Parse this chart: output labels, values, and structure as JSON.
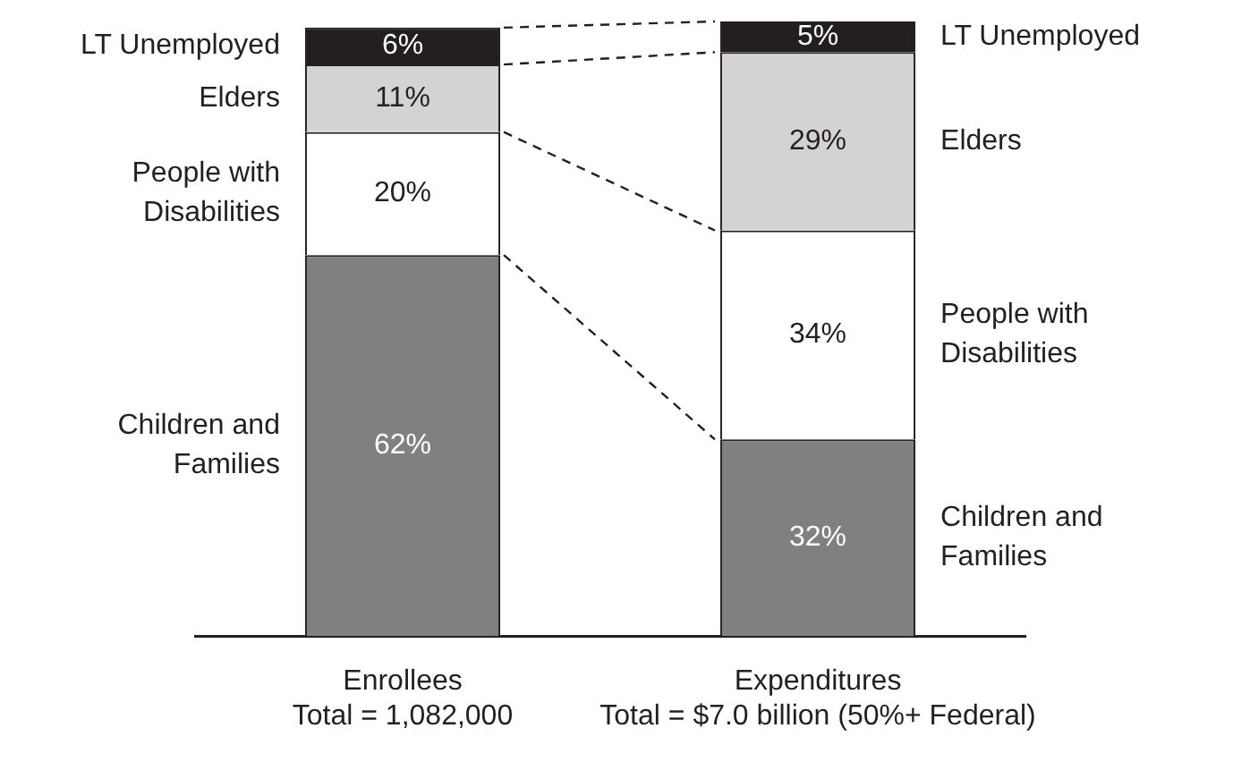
{
  "chart_data": {
    "type": "bar",
    "stacked": true,
    "categories": [
      "Enrollees\nTotal = 1,082,000",
      "Expenditures\nTotal = $7.0 billion (50%+ Federal)"
    ],
    "series": [
      {
        "name": "Children and Families",
        "color": "#808083",
        "values": [
          62,
          32
        ],
        "value_labels": [
          "62%",
          "32%"
        ]
      },
      {
        "name": "People with Disabilities",
        "color": "#ffffff",
        "values": [
          20,
          34
        ],
        "value_labels": [
          "20%",
          "34%"
        ]
      },
      {
        "name": "Elders",
        "color": "#d3d3d3",
        "values": [
          11,
          29
        ],
        "value_labels": [
          "11%",
          "29%"
        ]
      },
      {
        "name": "LT Unemployed",
        "color": "#231f20",
        "values": [
          6,
          5
        ],
        "value_labels": [
          "6%",
          "5%"
        ]
      }
    ],
    "legend": false
  }
}
